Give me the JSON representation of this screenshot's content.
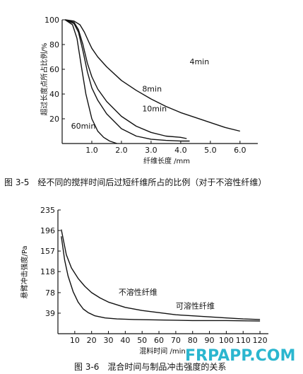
{
  "chart_data": [
    {
      "type": "line",
      "caption": "图 3-5　经不同的搅拌时间后过短纤维所占的比例（对于不溶性纤维）",
      "xlabel": "纤维长度 /mm",
      "ylabel": "超过长度点所占比例/%",
      "xlim": [
        0,
        6.6
      ],
      "ylim": [
        0,
        100
      ],
      "xticks": [
        "2.0",
        "3.0",
        "4.0",
        "5.0",
        "6.0"
      ],
      "xtick_values": [
        2.0,
        3.0,
        4.0,
        5.0,
        6.0
      ],
      "xtick_minor": [
        "1.0"
      ],
      "xtick_minor_values": [
        1.0
      ],
      "yticks": [
        "20",
        "40",
        "60",
        "80",
        "100"
      ],
      "ytick_values": [
        20,
        40,
        60,
        80,
        100
      ],
      "series": [
        {
          "name": "4min",
          "label_at": [
            4.3,
            64
          ],
          "x": [
            0.1,
            0.4,
            0.6,
            0.75,
            0.9,
            1.0,
            1.2,
            1.5,
            2.0,
            2.5,
            3.0,
            3.5,
            4.0,
            4.5,
            5.0,
            5.5,
            6.0
          ],
          "y": [
            100,
            99,
            96,
            90,
            82,
            77,
            70,
            62,
            51,
            43,
            36,
            30,
            25,
            21,
            17,
            13,
            10
          ]
        },
        {
          "name": "8min",
          "label_at": [
            2.7,
            42
          ],
          "x": [
            0.1,
            0.4,
            0.55,
            0.7,
            0.85,
            1.0,
            1.2,
            1.5,
            2.0,
            2.5,
            3.0,
            3.5,
            4.0,
            4.2
          ],
          "y": [
            100,
            98,
            92,
            80,
            65,
            54,
            44,
            34,
            22,
            14,
            9,
            6,
            5,
            4
          ]
        },
        {
          "name": "10min",
          "label_at": [
            2.7,
            26
          ],
          "x": [
            0.1,
            0.4,
            0.55,
            0.7,
            0.85,
            1.0,
            1.2,
            1.5,
            2.0,
            2.5,
            3.0,
            3.5,
            4.0,
            4.3
          ],
          "y": [
            100,
            97,
            90,
            75,
            58,
            45,
            35,
            24,
            12,
            6,
            3.5,
            2.5,
            2,
            2
          ]
        },
        {
          "name": "60min",
          "label_at": [
            0.3,
            12
          ],
          "x": [
            0.1,
            0.35,
            0.5,
            0.65,
            0.8,
            1.0,
            1.2,
            1.4,
            1.6,
            1.85
          ],
          "y": [
            100,
            96,
            85,
            62,
            40,
            20,
            10,
            5,
            2,
            0
          ]
        }
      ]
    },
    {
      "type": "line",
      "caption": "图 3-6　混合时间与制品冲击强度的关系",
      "xlabel": "混料时间 /min",
      "ylabel": "悬臂冲击强度/Pa",
      "xlim": [
        0,
        125
      ],
      "ylim": [
        0,
        235
      ],
      "xticks": [
        "10",
        "20",
        "30",
        "40",
        "50",
        "60",
        "70",
        "80",
        "90",
        "100",
        "110",
        "120"
      ],
      "xtick_values": [
        10,
        20,
        30,
        40,
        50,
        60,
        70,
        80,
        90,
        100,
        110,
        120
      ],
      "yticks": [
        "39",
        "78",
        "118",
        "157",
        "196",
        "235"
      ],
      "ytick_values": [
        39,
        78,
        118,
        157,
        196,
        235
      ],
      "series": [
        {
          "name": "不溶性纤维",
          "label_at": [
            36,
            74
          ],
          "x": [
            2,
            5,
            8,
            12,
            16,
            20,
            25,
            30,
            40,
            50,
            60,
            70,
            80,
            90,
            100,
            110,
            120
          ],
          "y": [
            198,
            150,
            125,
            105,
            90,
            78,
            68,
            60,
            50,
            44,
            40,
            36,
            34,
            32,
            30,
            28,
            27
          ]
        },
        {
          "name": "可溶性纤维",
          "label_at": [
            70,
            48
          ],
          "x": [
            2,
            4,
            6,
            9,
            12,
            15,
            18,
            22,
            28,
            35,
            45,
            60,
            80,
            100,
            120
          ],
          "y": [
            185,
            140,
            110,
            80,
            60,
            47,
            40,
            34,
            30,
            28,
            27,
            26,
            25,
            25,
            24
          ]
        }
      ]
    }
  ],
  "watermark": "FRPAPP.COM"
}
